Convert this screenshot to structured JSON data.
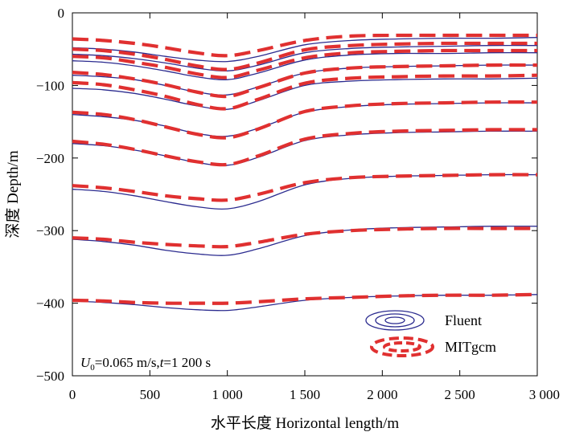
{
  "chart_data": {
    "type": "line",
    "xlabel": "水平长度 Horizontal length/m",
    "ylabel": "深度 Depth/m",
    "xlim": [
      0,
      3000
    ],
    "ylim": [
      -500,
      0
    ],
    "x_ticks": [
      0,
      500,
      1000,
      1500,
      2000,
      2500,
      3000
    ],
    "x_tick_labels": [
      "0",
      "500",
      "1 000",
      "1 500",
      "2 000",
      "2 500",
      "3 000"
    ],
    "y_ticks": [
      0,
      -100,
      -200,
      -300,
      -400,
      -500
    ],
    "y_tick_labels": [
      "0",
      "−100",
      "−200",
      "−300",
      "−400",
      "−500"
    ],
    "grid": false,
    "legend_position": "bottom-right",
    "annotation": {
      "u_symbol": "U",
      "u_subscript": "0",
      "u_text": "=0.065 m/s,",
      "t_symbol": "t",
      "t_text": "=1 200 s"
    },
    "series": [
      {
        "name": "Fluent",
        "style": "solid",
        "color": "#2b2b8f",
        "x": [
          0,
          200,
          400,
          600,
          800,
          1000,
          1200,
          1500,
          1800,
          2100,
          2400,
          2700,
          3000
        ],
        "lines": [
          [
            -48,
            -50,
            -54,
            -60,
            -65,
            -67,
            -60,
            -44,
            -38,
            -36,
            -35,
            -35,
            -34
          ],
          [
            -57,
            -59,
            -63,
            -69,
            -76,
            -80,
            -72,
            -55,
            -49,
            -47,
            -46,
            -45,
            -45
          ],
          [
            -66,
            -68,
            -73,
            -80,
            -88,
            -92,
            -83,
            -65,
            -58,
            -56,
            -56,
            -55,
            -55
          ],
          [
            -86,
            -88,
            -92,
            -100,
            -109,
            -113,
            -102,
            -83,
            -76,
            -74,
            -73,
            -72,
            -72
          ],
          [
            -104,
            -106,
            -111,
            -119,
            -128,
            -133,
            -121,
            -100,
            -94,
            -92,
            -91,
            -91,
            -90
          ],
          [
            -140,
            -143,
            -148,
            -156,
            -166,
            -170,
            -159,
            -137,
            -129,
            -126,
            -125,
            -124,
            -124
          ],
          [
            -180,
            -183,
            -189,
            -197,
            -206,
            -210,
            -199,
            -176,
            -168,
            -165,
            -164,
            -163,
            -163
          ],
          [
            -243,
            -246,
            -252,
            -260,
            -267,
            -270,
            -260,
            -237,
            -228,
            -225,
            -224,
            -223,
            -223
          ],
          [
            -312,
            -315,
            -320,
            -327,
            -332,
            -334,
            -325,
            -307,
            -299,
            -296,
            -295,
            -294,
            -294
          ],
          [
            -397,
            -399,
            -402,
            -406,
            -409,
            -410,
            -405,
            -396,
            -392,
            -390,
            -389,
            -389,
            -388
          ]
        ]
      },
      {
        "name": "MITgcm",
        "style": "dashed",
        "color": "#e03030",
        "x": [
          0,
          200,
          400,
          600,
          800,
          1000,
          1200,
          1500,
          1800,
          2100,
          2400,
          2700,
          3000
        ],
        "lines": [
          [
            -36,
            -38,
            -42,
            -48,
            -55,
            -59,
            -52,
            -38,
            -32,
            -31,
            -31,
            -31,
            -31
          ],
          [
            -50,
            -52,
            -57,
            -64,
            -73,
            -78,
            -69,
            -51,
            -45,
            -43,
            -42,
            -42,
            -42
          ],
          [
            -60,
            -62,
            -68,
            -75,
            -84,
            -89,
            -79,
            -62,
            -55,
            -53,
            -52,
            -52,
            -52
          ],
          [
            -82,
            -85,
            -91,
            -99,
            -109,
            -115,
            -103,
            -83,
            -76,
            -74,
            -73,
            -72,
            -72
          ],
          [
            -96,
            -99,
            -106,
            -115,
            -126,
            -132,
            -119,
            -97,
            -90,
            -88,
            -87,
            -87,
            -86
          ],
          [
            -137,
            -140,
            -147,
            -157,
            -167,
            -172,
            -160,
            -136,
            -128,
            -125,
            -124,
            -123,
            -123
          ],
          [
            -177,
            -181,
            -188,
            -197,
            -205,
            -209,
            -197,
            -174,
            -166,
            -163,
            -162,
            -161,
            -161
          ],
          [
            -238,
            -241,
            -246,
            -252,
            -256,
            -258,
            -250,
            -234,
            -227,
            -225,
            -224,
            -223,
            -223
          ],
          [
            -310,
            -312,
            -316,
            -319,
            -321,
            -322,
            -316,
            -305,
            -300,
            -298,
            -297,
            -297,
            -297
          ],
          [
            -396,
            -397,
            -399,
            -400,
            -400,
            -400,
            -398,
            -394,
            -392,
            -390,
            -389,
            -389,
            -388
          ]
        ]
      }
    ]
  }
}
